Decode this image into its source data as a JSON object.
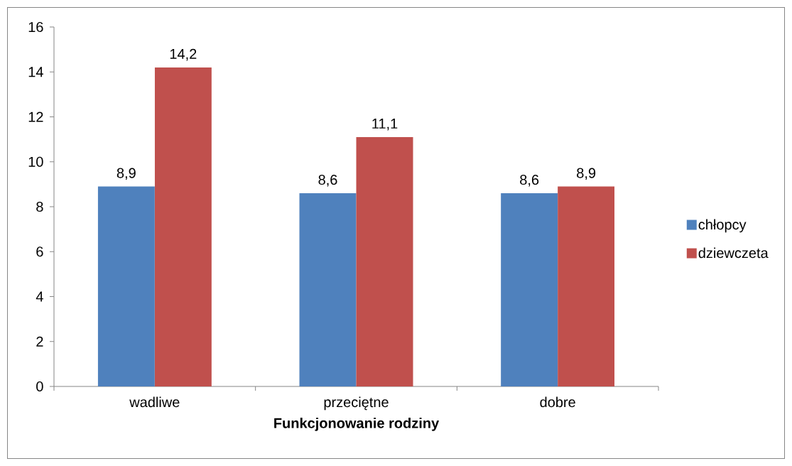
{
  "chart_data": {
    "type": "bar",
    "xlabel": "Funkcjonowanie rodziny",
    "categories": [
      "wadliwe",
      "przeciętne",
      "dobre"
    ],
    "series": [
      {
        "name": "chłopcy",
        "color": "#4f81bd",
        "values": [
          8.9,
          8.6,
          8.6
        ],
        "value_labels": [
          "8,9",
          "8,6",
          "8,6"
        ]
      },
      {
        "name": "dziewczeta",
        "color": "#c0504d",
        "values": [
          14.2,
          11.1,
          8.9
        ],
        "value_labels": [
          "14,2",
          "11,1",
          "8,9"
        ]
      }
    ],
    "ylim": [
      0,
      16
    ],
    "yticks": [
      0,
      2,
      4,
      6,
      8,
      10,
      12,
      14,
      16
    ],
    "legend": "right"
  }
}
